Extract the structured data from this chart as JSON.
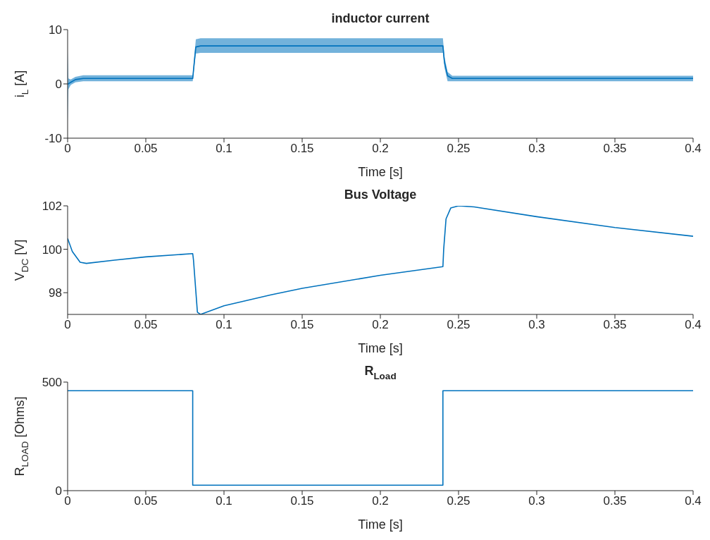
{
  "chart_data": [
    {
      "type": "line",
      "title": "inductor current",
      "xlabel": "Time [s]",
      "ylabel": "i$_{L}$ [A]",
      "x": [
        0,
        0.0005,
        0.002,
        0.005,
        0.01,
        0.02,
        0.08,
        0.081,
        0.082,
        0.085,
        0.09,
        0.24,
        0.241,
        0.243,
        0.246,
        0.25,
        0.4
      ],
      "series": [
        {
          "color": "#0072bd",
          "values": [
            0,
            0,
            0.3,
            0.8,
            1.0,
            1.0,
            1.0,
            4,
            6.8,
            7.0,
            7.0,
            7.0,
            4,
            1.5,
            1.0,
            1.0,
            1.0
          ],
          "lower": [
            -7,
            -1,
            -0.2,
            0.3,
            0.5,
            0.5,
            0.5,
            3,
            5.6,
            5.7,
            5.7,
            5.7,
            3,
            0.5,
            0.5,
            0.5,
            0.5
          ],
          "upper": [
            6,
            1,
            0.8,
            1.3,
            1.6,
            1.6,
            1.6,
            5,
            8.2,
            8.4,
            8.4,
            8.4,
            5,
            2.2,
            1.5,
            1.5,
            1.5
          ]
        }
      ],
      "xlim": [
        0,
        0.4
      ],
      "ylim": [
        -10,
        10
      ],
      "xticks": [
        0,
        0.05,
        0.1,
        0.15,
        0.2,
        0.25,
        0.3,
        0.35,
        0.4
      ],
      "yticks": [
        -10,
        0,
        10
      ]
    },
    {
      "type": "line",
      "title": "Bus Voltage",
      "xlabel": "Time [s]",
      "ylabel": "V$_{DC}$ [V]",
      "x": [
        0,
        0.003,
        0.008,
        0.012,
        0.03,
        0.05,
        0.08,
        0.0805,
        0.083,
        0.085,
        0.1,
        0.13,
        0.15,
        0.2,
        0.24,
        0.2405,
        0.242,
        0.245,
        0.25,
        0.26,
        0.3,
        0.35,
        0.4
      ],
      "series": [
        {
          "color": "#0072bd",
          "values": [
            100.5,
            99.9,
            99.4,
            99.35,
            99.5,
            99.65,
            99.8,
            99.5,
            97.1,
            97.0,
            97.4,
            97.9,
            98.2,
            98.8,
            99.2,
            100,
            101.4,
            101.9,
            102,
            101.95,
            101.5,
            101,
            100.6
          ]
        }
      ],
      "xlim": [
        0,
        0.4
      ],
      "ylim": [
        97,
        102
      ],
      "xticks": [
        0,
        0.05,
        0.1,
        0.15,
        0.2,
        0.25,
        0.3,
        0.35,
        0.4
      ],
      "yticks": [
        98,
        100,
        102
      ]
    },
    {
      "type": "step",
      "title": "R$_{Load}$",
      "xlabel": "Time [s]",
      "ylabel": "R$_{LOAD}$ [Ohms]",
      "x": [
        0,
        0.08,
        0.24,
        0.4
      ],
      "series": [
        {
          "color": "#0072bd",
          "values": [
            460,
            25,
            460,
            460
          ]
        }
      ],
      "xlim": [
        0,
        0.4
      ],
      "ylim": [
        0,
        500
      ],
      "xticks": [
        0,
        0.05,
        0.1,
        0.15,
        0.2,
        0.25,
        0.3,
        0.35,
        0.4
      ],
      "yticks": [
        0,
        500
      ]
    }
  ]
}
